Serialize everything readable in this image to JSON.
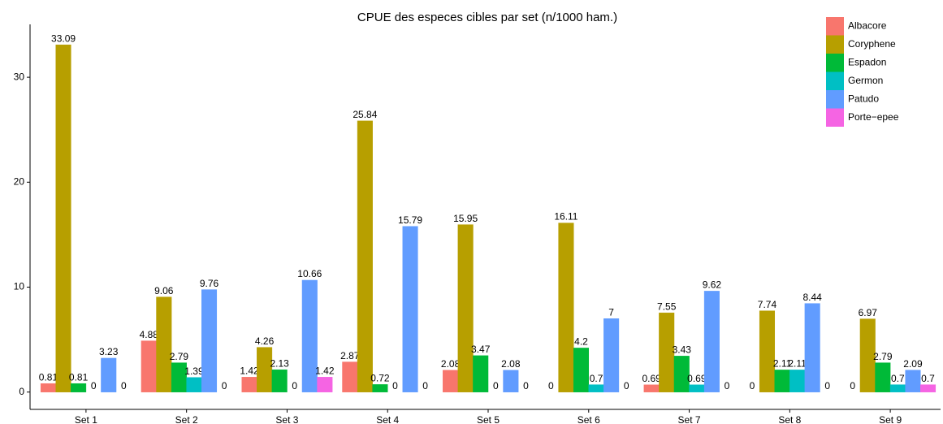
{
  "chart_data": {
    "type": "bar",
    "title": "CPUE des especes cibles par set (n/1000 ham.)",
    "categories": [
      "Set 1",
      "Set 2",
      "Set 3",
      "Set 4",
      "Set 5",
      "Set 6",
      "Set 7",
      "Set 8",
      "Set 9"
    ],
    "series": [
      {
        "name": "Albacore",
        "color": "#f8766d",
        "values": [
          0.81,
          4.88,
          1.42,
          2.87,
          2.08,
          0,
          0.69,
          0,
          0
        ]
      },
      {
        "name": "Coryphene",
        "color": "#b79f00",
        "values": [
          33.09,
          9.06,
          4.26,
          25.84,
          15.95,
          16.11,
          7.55,
          7.74,
          6.97
        ]
      },
      {
        "name": "Espadon",
        "color": "#00ba38",
        "values": [
          0.81,
          2.79,
          2.13,
          0.72,
          3.47,
          4.2,
          3.43,
          2.11,
          2.79
        ]
      },
      {
        "name": "Germon",
        "color": "#00bfc4",
        "values": [
          0,
          1.39,
          0,
          0,
          0,
          0.7,
          0.69,
          2.11,
          0.7
        ]
      },
      {
        "name": "Patudo",
        "color": "#619cff",
        "values": [
          3.23,
          9.76,
          10.66,
          15.79,
          2.08,
          7,
          9.62,
          8.44,
          2.09
        ]
      },
      {
        "name": "Porte−epee",
        "color": "#f564e3",
        "values": [
          0,
          0,
          1.42,
          0,
          0,
          0,
          0,
          0,
          0.7
        ]
      }
    ],
    "ylim": [
      -1.65,
      35.04
    ],
    "yticks": [
      0,
      10,
      20,
      30
    ],
    "grid": false,
    "legend": "top-right"
  }
}
